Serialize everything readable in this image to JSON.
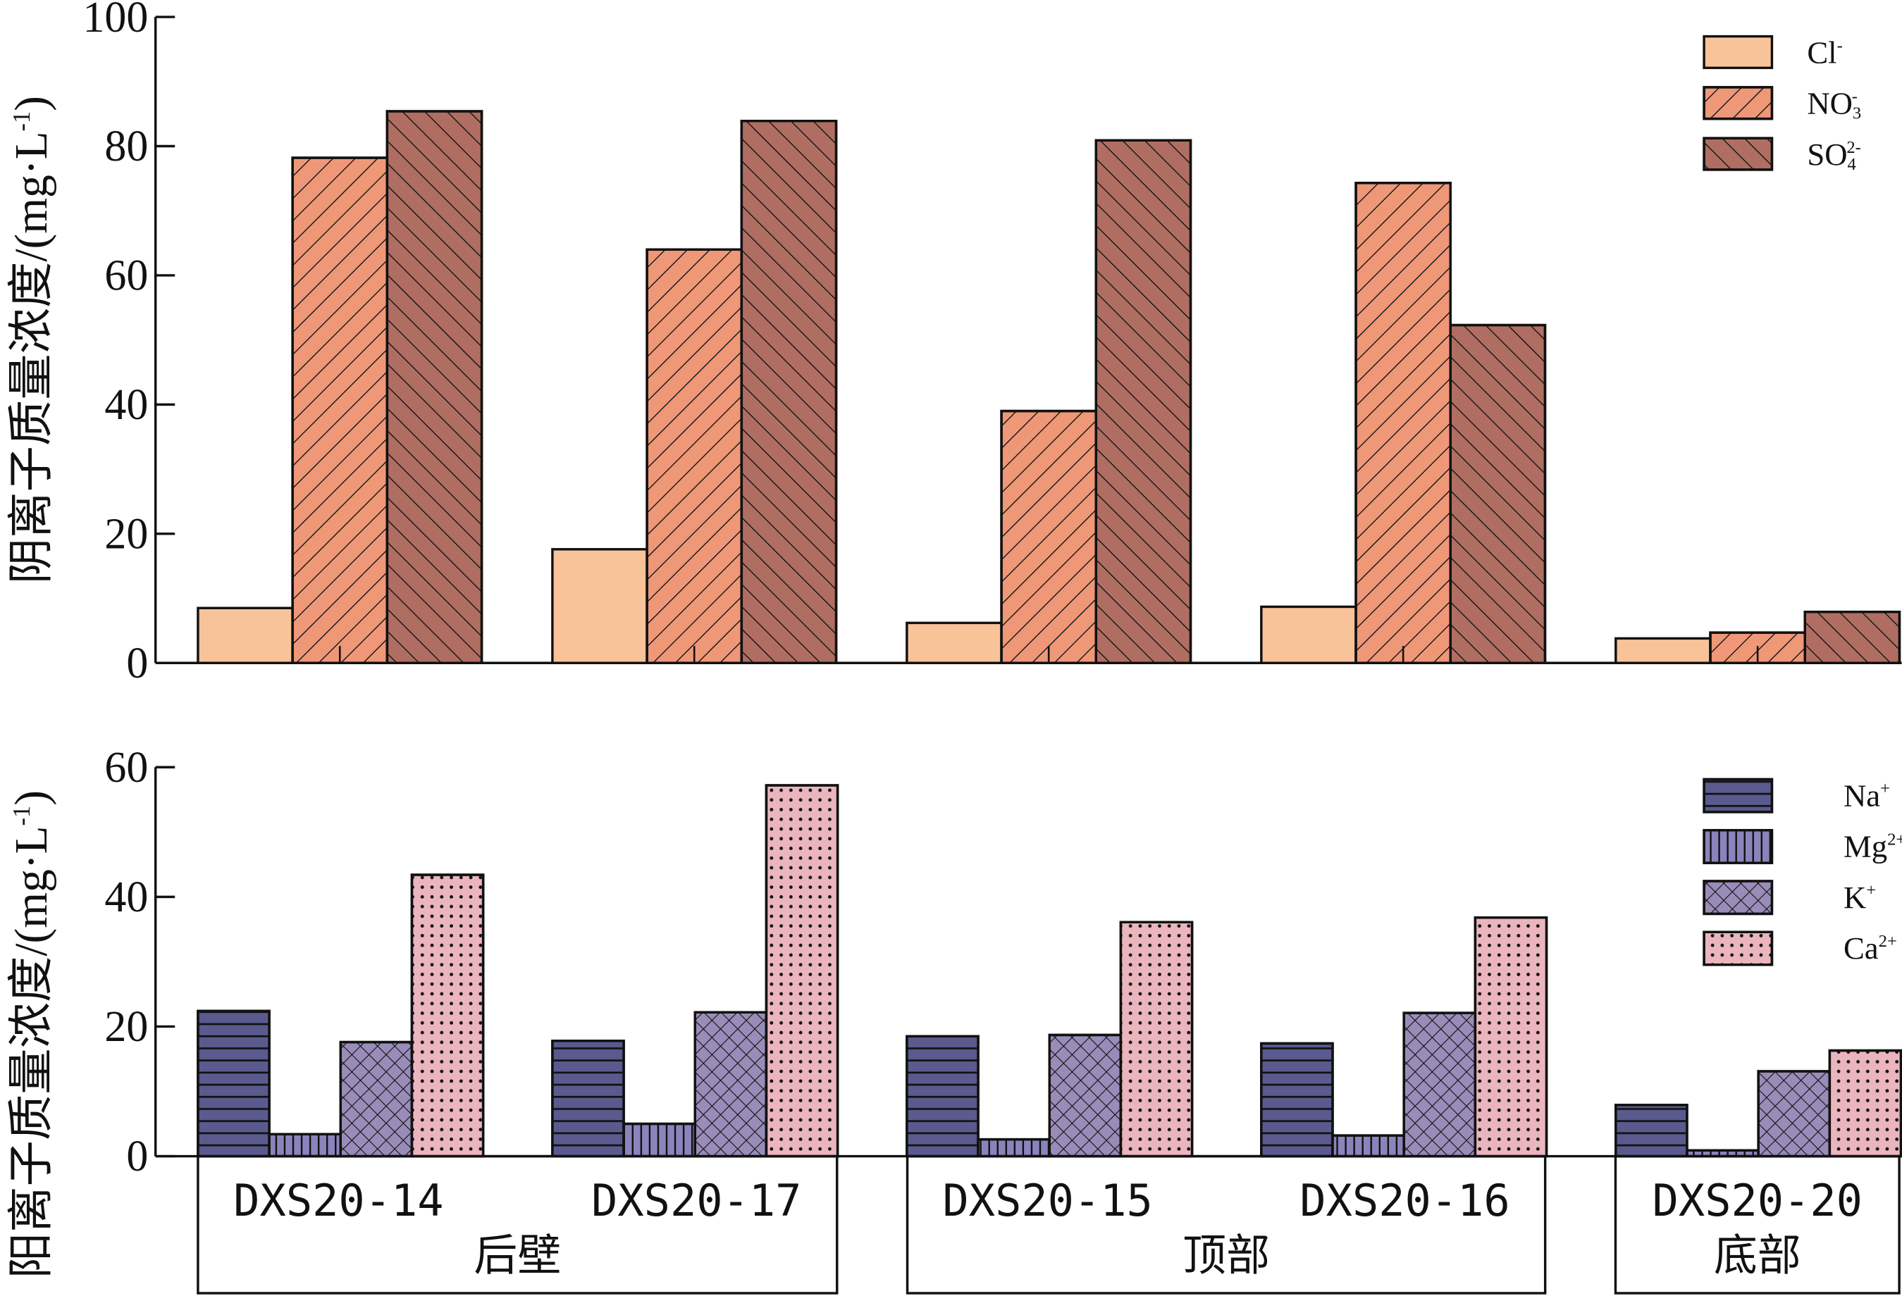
{
  "chart_data": [
    {
      "type": "bar",
      "ylabel": "阴离子质量浓度/(mg·L⁻¹)",
      "ylabel_main": "阴离子质量浓度/(mg·L",
      "ylabel_sup": "-1",
      "ylabel_end": ")",
      "ylim": [
        0,
        100
      ],
      "yticks": [
        "0",
        "20",
        "40",
        "60",
        "80",
        "100"
      ],
      "ytick_values": [
        0,
        20,
        40,
        60,
        80,
        100
      ],
      "categories": [
        "DXS20-14",
        "DXS20-17",
        "DXS20-15",
        "DXS20-16",
        "DXS20-20"
      ],
      "legend_position": "top-right",
      "series": [
        {
          "name": "Cl-",
          "base": "Cl",
          "sub": "",
          "sup": "-",
          "color": "#F9C39A",
          "pattern": "none",
          "values": [
            8.5,
            17.6,
            6.2,
            8.7,
            3.8
          ]
        },
        {
          "name": "NO3-",
          "base": "NO",
          "sub": "3",
          "sup": "-",
          "color": "#EE9878",
          "pattern": "fwd",
          "values": [
            78.2,
            64.0,
            39.0,
            74.3,
            4.7
          ]
        },
        {
          "name": "SO4 2-",
          "base": "SO",
          "sub": "4",
          "sup": "2-",
          "color": "#B06E63",
          "pattern": "back",
          "values": [
            85.4,
            83.9,
            80.9,
            52.3,
            7.9
          ]
        }
      ]
    },
    {
      "type": "bar",
      "ylabel": "阳离子质量浓度/(mg·L⁻¹)",
      "ylabel_main": "阳离子质量浓度/(mg·L",
      "ylabel_sup": "-1",
      "ylabel_end": ")",
      "ylim": [
        0,
        60
      ],
      "yticks": [
        "0",
        "20",
        "40",
        "60"
      ],
      "ytick_values": [
        0,
        20,
        40,
        60
      ],
      "categories": [
        "DXS20-14",
        "DXS20-17",
        "DXS20-15",
        "DXS20-16",
        "DXS20-20"
      ],
      "legend_position": "top-right",
      "series": [
        {
          "name": "Na+",
          "base": "Na",
          "sub": "",
          "sup": "+",
          "color": "#5A5A8E",
          "pattern": "hlines",
          "values": [
            22.4,
            17.8,
            18.5,
            17.4,
            7.9
          ]
        },
        {
          "name": "Mg2+",
          "base": "Mg",
          "sub": "",
          "sup": "2+",
          "color": "#8A84BC",
          "pattern": "vlines",
          "values": [
            3.4,
            5.0,
            2.6,
            3.2,
            0.9
          ]
        },
        {
          "name": "K+",
          "base": "K",
          "sub": "",
          "sup": "+",
          "color": "#9A8CB8",
          "pattern": "cross",
          "values": [
            17.6,
            22.2,
            18.7,
            22.1,
            13.1
          ]
        },
        {
          "name": "Ca2+",
          "base": "Ca",
          "sub": "",
          "sup": "2+",
          "color": "#EBB5BE",
          "pattern": "dots",
          "values": [
            43.4,
            57.2,
            36.1,
            36.8,
            16.3
          ]
        }
      ],
      "groups": [
        {
          "label": "后壁",
          "samples": [
            "DXS20-14",
            "DXS20-17"
          ]
        },
        {
          "label": "顶部",
          "samples": [
            "DXS20-15",
            "DXS20-16"
          ]
        },
        {
          "label": "底部",
          "samples": [
            "DXS20-20"
          ]
        }
      ]
    }
  ]
}
